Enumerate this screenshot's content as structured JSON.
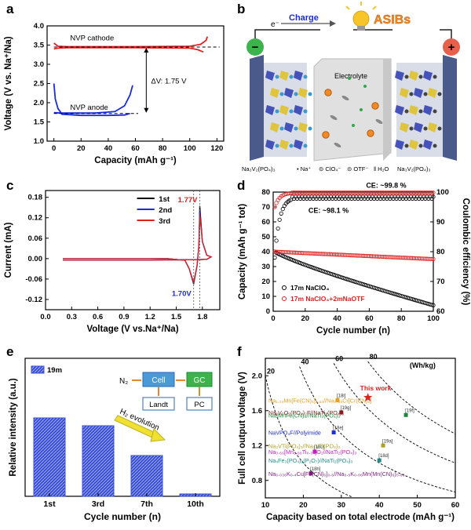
{
  "panels": {
    "a": {
      "label": "a",
      "chart_data": {
        "type": "line",
        "xlabel": "Capacity (mAh g⁻¹)",
        "ylabel": "Voltage (V vs. Na⁺/Na)",
        "xlim": [
          -5,
          125
        ],
        "ylim": [
          1.0,
          4.0
        ],
        "xticks": [
          0,
          20,
          40,
          60,
          80,
          100,
          120
        ],
        "yticks": [
          1.0,
          1.5,
          2.0,
          2.5,
          3.0,
          3.5,
          4.0
        ],
        "series": [
          {
            "name": "NVP cathode",
            "color": "#e02020",
            "charge": [
              [
                0,
                3.55
              ],
              [
                3,
                3.47
              ],
              [
                10,
                3.46
              ],
              [
                60,
                3.46
              ],
              [
                100,
                3.47
              ],
              [
                108,
                3.52
              ],
              [
                112,
                3.62
              ],
              [
                113,
                3.72
              ]
            ],
            "discharge": [
              [
                0,
                3.4
              ],
              [
                3,
                3.42
              ],
              [
                10,
                3.43
              ],
              [
                60,
                3.43
              ],
              [
                100,
                3.42
              ],
              [
                106,
                3.38
              ],
              [
                110,
                3.32
              ]
            ]
          },
          {
            "name": "NVP anode",
            "color": "#1a2ce0",
            "charge": [
              [
                0,
                1.74
              ],
              [
                5,
                1.73
              ],
              [
                30,
                1.73
              ],
              [
                45,
                1.77
              ],
              [
                52,
                1.92
              ],
              [
                56,
                2.2
              ],
              [
                58,
                2.45
              ]
            ],
            "discharge": [
              [
                0,
                2.5
              ],
              [
                1,
                2.1
              ],
              [
                3,
                1.85
              ],
              [
                6,
                1.7
              ],
              [
                20,
                1.67
              ],
              [
                40,
                1.67
              ],
              [
                52,
                1.68
              ],
              [
                56,
                1.72
              ]
            ]
          }
        ],
        "ref_lines": {
          "cathode_v": 3.45,
          "anode_v": 1.72
        },
        "annotation": "ΔV: 1.75 V"
      }
    },
    "b": {
      "label": "b",
      "charge_label": "Charge",
      "electron_label": "e⁻",
      "asib_label": "ASIBs",
      "minus_label": "−",
      "plus_label": "+",
      "electrolyte_label": "Electrolyte",
      "legend": [
        "Na₃V₂(PO₄)₃",
        "• Na⁺",
        "⊝ ClO₄⁻",
        "⊝ OTF⁻",
        "‖ H₂O",
        "Na₃V₂(PO₄)₃"
      ],
      "colors": {
        "electrode": "#4a5a8a",
        "minus": "#3cb44b",
        "plus": "#e8604c",
        "bulb": "#f6c52a",
        "asib": "#f08a24"
      }
    },
    "c": {
      "label": "c",
      "chart_data": {
        "type": "line",
        "xlabel": "Voltage (V vs.Na⁺/Na)",
        "ylabel": "Current (mA)",
        "xlim": [
          0,
          2.0
        ],
        "ylim": [
          -0.15,
          0.2
        ],
        "xticks": [
          0.0,
          0.3,
          0.6,
          0.9,
          1.2,
          1.5,
          1.8
        ],
        "yticks": [
          -0.12,
          -0.06,
          0.0,
          0.06,
          0.12,
          0.18
        ],
        "peaks": {
          "oxidation": "1.77V",
          "reduction": "1.70V",
          "ox_v": 1.77,
          "red_v": 1.7
        },
        "series": [
          {
            "name": "1st",
            "color": "#000000",
            "peak_ox": 0.155,
            "peak_red": -0.075
          },
          {
            "name": "2nd",
            "color": "#1a2ce0",
            "peak_ox": 0.14,
            "peak_red": -0.072
          },
          {
            "name": "3rd",
            "color": "#e02020",
            "peak_ox": 0.13,
            "peak_red": -0.07
          }
        ]
      }
    },
    "d": {
      "label": "d",
      "chart_data": {
        "type": "scatter",
        "xlabel": "Cycle number (n)",
        "ylabel": "Capacity (mAh g⁻¹ tot)",
        "y2label": "Coulombic efficiency (%)",
        "xlim": [
          0,
          100
        ],
        "ylim": [
          0,
          80
        ],
        "y2lim": [
          60,
          100
        ],
        "xticks": [
          0,
          20,
          40,
          60,
          80,
          100
        ],
        "yticks": [
          0,
          10,
          20,
          30,
          40,
          50,
          60,
          70,
          80
        ],
        "y2ticks": [
          60,
          70,
          80,
          90,
          100
        ],
        "annotations": [
          "CE: ~99.8 %",
          "CE: ~98.1 %"
        ],
        "series": [
          {
            "name": "17m NaClO₄",
            "color": "#000000",
            "capacity_start": 40,
            "capacity_end": 4,
            "ce_start": 78,
            "ce_plateau": 98.1
          },
          {
            "name": "17m NaClO₄+2mNaOTF",
            "color": "#e02020",
            "capacity_start": 40,
            "capacity_end": 35,
            "ce_start": 95,
            "ce_plateau": 99.8
          }
        ]
      }
    },
    "e": {
      "label": "e",
      "legend": "19m",
      "scheme": {
        "n2": "N₂",
        "cell": "Cell",
        "gc": "GC",
        "landt": "Landt",
        "pc": "PC",
        "arrow": "H₂ evolution"
      },
      "chart_data": {
        "type": "bar",
        "xlabel": "Cycle number (n)",
        "ylabel": "Relative intensity (a.u.)",
        "categories": [
          "1st",
          "3rd",
          "7th",
          "10th"
        ],
        "values": [
          1.0,
          0.9,
          0.52,
          0.03
        ],
        "color": "#3a4fd8"
      }
    },
    "f": {
      "label": "f",
      "chart_data": {
        "type": "scatter",
        "xlabel": "Capacity based on total electrode (mAh g⁻¹)",
        "ylabel": "Full cell output voltage (V)",
        "xlim": [
          10,
          60
        ],
        "ylim": [
          0.6,
          2.2
        ],
        "xticks": [
          10,
          20,
          30,
          40,
          50,
          60
        ],
        "yticks": [
          0.8,
          1.2,
          1.6,
          2.0
        ],
        "energy_lines": [
          "20",
          "40",
          "60",
          "80",
          "(Wh/kg)"
        ],
        "this_work": {
          "label": "This work",
          "x": 37,
          "y": 1.75,
          "color": "#e02020"
        },
        "points": [
          {
            "label": "Na₁.₂₄Mn[Fe(CN)₆]₀.₈₁//Na₀.₅₈Cr[Cr(CN)₆]",
            "ref": "[18i]",
            "x": 29,
            "y": 1.72,
            "color": "#e6a020"
          },
          {
            "label": "Na₃V₂O₂(PO₄)₂F//NaTi₂(PO₄)₃",
            "ref": "[19g]",
            "x": 30,
            "y": 1.58,
            "color": "#8b1a1a"
          },
          {
            "label": "Na₂MnFe(CN)₆//NaTi₂(PO₄)₃",
            "ref": "[19f]",
            "x": 47,
            "y": 1.55,
            "color": "#1a8a3a"
          },
          {
            "label": "NaVPO₄F//Polyimide",
            "ref": "[18e]",
            "x": 28,
            "y": 1.35,
            "color": "#1a2ce0"
          },
          {
            "label": "Na₃VTi(PO₄)₃//Na₃VTi(PO₄)₃",
            "ref": "[19a]",
            "x": 41,
            "y": 1.2,
            "color": "#b0a020"
          },
          {
            "label": "Na₀.₆₆[Mn₀.₆₆Ti₀.₃₄]O₂//NaTi₂(PO₄)₃",
            "ref": "[18c]",
            "x": 23,
            "y": 1.13,
            "color": "#c020c0"
          },
          {
            "label": "Na₄Fe₃(PO₄)₂(P₂O₇)//NaTi₂(PO₄)₃",
            "ref": "[18d]",
            "x": 40,
            "y": 1.03,
            "color": "#1a8a8a"
          },
          {
            "label": "Na₀.₀₃₆K₀.₄Cu[Fe(CN)₆]₀.₆//Na₀.₆K₀.₀₆Mn(Mn(CN)₆)₀.₈₃",
            "ref": "[18h]",
            "x": 22,
            "y": 0.88,
            "color": "#7a1a7a"
          }
        ]
      }
    }
  }
}
